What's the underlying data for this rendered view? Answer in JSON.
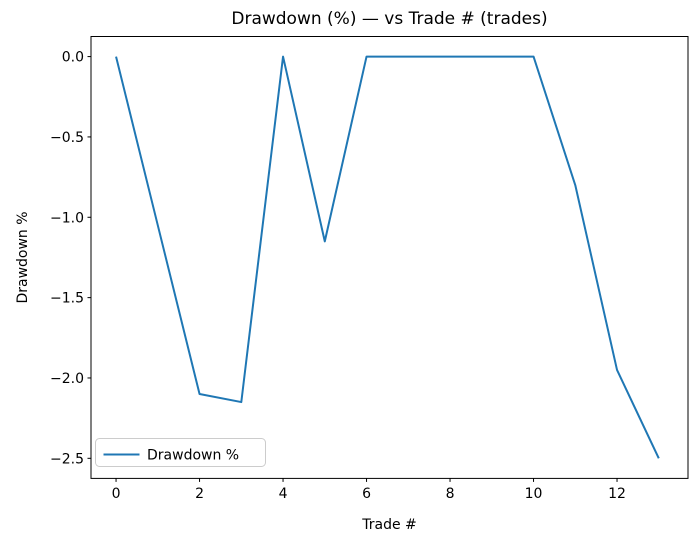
{
  "chart_data": {
    "type": "line",
    "title": "Drawdown (%) — vs Trade # (trades)",
    "xlabel": "Trade #",
    "ylabel": "Drawdown %",
    "x": [
      0,
      1,
      2,
      3,
      4,
      5,
      6,
      7,
      8,
      9,
      10,
      11,
      12,
      13
    ],
    "series": [
      {
        "name": "Drawdown %",
        "color": "#1f77b4",
        "values": [
          0.0,
          -1.05,
          -2.1,
          -2.15,
          0.0,
          -1.15,
          0.0,
          0.0,
          0.0,
          0.0,
          0.0,
          -0.8,
          -1.95,
          -2.5
        ]
      }
    ],
    "xlim": [
      -0.6,
      13.7
    ],
    "ylim": [
      -2.625,
      0.125
    ],
    "xticks": {
      "values": [
        0,
        2,
        4,
        6,
        8,
        10,
        12
      ],
      "labels": [
        "0",
        "2",
        "4",
        "6",
        "8",
        "10",
        "12"
      ]
    },
    "yticks": {
      "values": [
        0.0,
        -0.5,
        -1.0,
        -1.5,
        -2.0,
        -2.5
      ],
      "labels": [
        "0.0",
        "−0.5",
        "−1.0",
        "−1.5",
        "−2.0",
        "−2.5"
      ]
    },
    "legend": {
      "label": "Drawdown %",
      "position": "lower left"
    },
    "grid": false,
    "colors": {
      "line": "#1f77b4",
      "axes": "#000000",
      "text": "#000000",
      "legend_border": "#cccccc",
      "background": "#ffffff"
    }
  }
}
